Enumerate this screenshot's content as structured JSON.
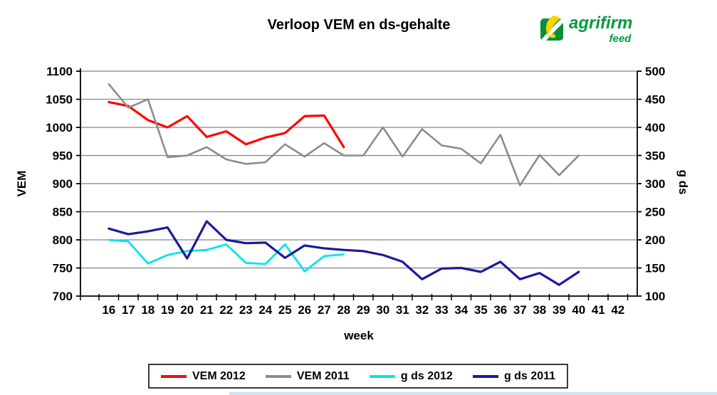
{
  "title": "Verloop VEM en ds-gehalte",
  "logo": {
    "name": "agrifirm",
    "sub": "feed",
    "green": "#009A3E",
    "yellow": "#FFD200"
  },
  "chart_data": {
    "type": "line",
    "title": "Verloop VEM en ds-gehalte",
    "xlabel": "week",
    "categories": [
      16,
      17,
      18,
      19,
      20,
      21,
      22,
      23,
      24,
      25,
      26,
      27,
      28,
      29,
      30,
      31,
      32,
      33,
      34,
      35,
      36,
      37,
      38,
      39,
      40,
      41,
      42
    ],
    "left_axis": {
      "label": "VEM",
      "min": 700,
      "max": 1100,
      "step": 50
    },
    "right_axis": {
      "label": "g ds",
      "min": 100,
      "max": 500,
      "step": 50
    },
    "grid": true,
    "gridline_color": "#848484",
    "legend_position": "bottom",
    "series": [
      {
        "name": "VEM 2012",
        "axis": "left",
        "color": "#FF0000",
        "start_category": 16,
        "values": [
          1045,
          1038,
          1013,
          1000,
          1020,
          983,
          993,
          970,
          982,
          990,
          1020,
          1021,
          965
        ]
      },
      {
        "name": "VEM 2011",
        "axis": "left",
        "color": "#8C8C8C",
        "start_category": 16,
        "values": [
          1077,
          1035,
          1050,
          947,
          950,
          965,
          943,
          935,
          938,
          970,
          948,
          972,
          950,
          950,
          1000,
          948,
          997,
          968,
          962,
          936,
          987,
          897,
          951,
          915,
          950
        ]
      },
      {
        "name": "g ds 2012",
        "axis": "right",
        "color": "#00E4EE",
        "start_category": 16,
        "values": [
          200,
          197,
          158,
          173,
          180,
          182,
          192,
          159,
          157,
          192,
          144,
          171,
          174
        ]
      },
      {
        "name": "g ds 2011",
        "axis": "right",
        "color": "#1A1A9C",
        "start_category": 16,
        "values": [
          220,
          210,
          215,
          222,
          167,
          233,
          200,
          194,
          195,
          168,
          190,
          185,
          182,
          180,
          173,
          161,
          130,
          149,
          150,
          143,
          161,
          130,
          141,
          120,
          143
        ]
      }
    ]
  }
}
